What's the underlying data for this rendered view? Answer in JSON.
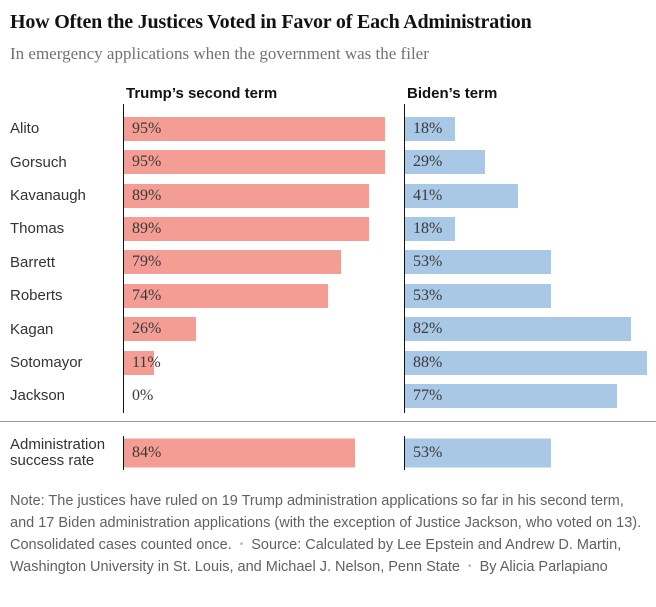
{
  "title": "How Often the Justices Voted in Favor of Each Administration",
  "subtitle": "In emergency applications when the government was the filer",
  "columns": {
    "trump": "Trump’s second term",
    "biden": "Biden’s term"
  },
  "chart_data": {
    "type": "bar",
    "orientation": "horizontal",
    "categories": [
      "Alito",
      "Gorsuch",
      "Kavanaugh",
      "Thomas",
      "Barrett",
      "Roberts",
      "Kagan",
      "Sotomayor",
      "Jackson"
    ],
    "series": [
      {
        "name": "Trump’s second term",
        "values": [
          95,
          95,
          89,
          89,
          79,
          74,
          26,
          11,
          0
        ],
        "color": "#f49d94"
      },
      {
        "name": "Biden’s term",
        "values": [
          18,
          29,
          41,
          18,
          53,
          53,
          82,
          88,
          77
        ],
        "color": "#a9c8e6"
      }
    ],
    "summary": {
      "label_line1": "Administration",
      "label_line2": "success rate",
      "values": [
        84,
        53
      ]
    },
    "unit": "%",
    "xlim": [
      0,
      100
    ],
    "grid": false,
    "legend": "column headers"
  },
  "footer": {
    "note": "Note: The justices have ruled on 19 Trump administration applications so far in his second term, and 17 Biden administration applications (with the exception of Justice Jackson, who voted on 13). Consolidated cases counted once.",
    "source": "Source: Calculated by Lee Epstein and Andrew D. Martin, Washington University in St. Louis, and Michael J. Nelson, Penn State",
    "byline": "By Alicia Parlapiano",
    "separator": "•"
  },
  "colors": {
    "trump_bar": "#f49d94",
    "biden_bar": "#a9c8e6",
    "axis": "#121212",
    "divider": "#999999",
    "title_text": "#121212",
    "subtitle_text": "#727272",
    "note_text": "#616161"
  }
}
